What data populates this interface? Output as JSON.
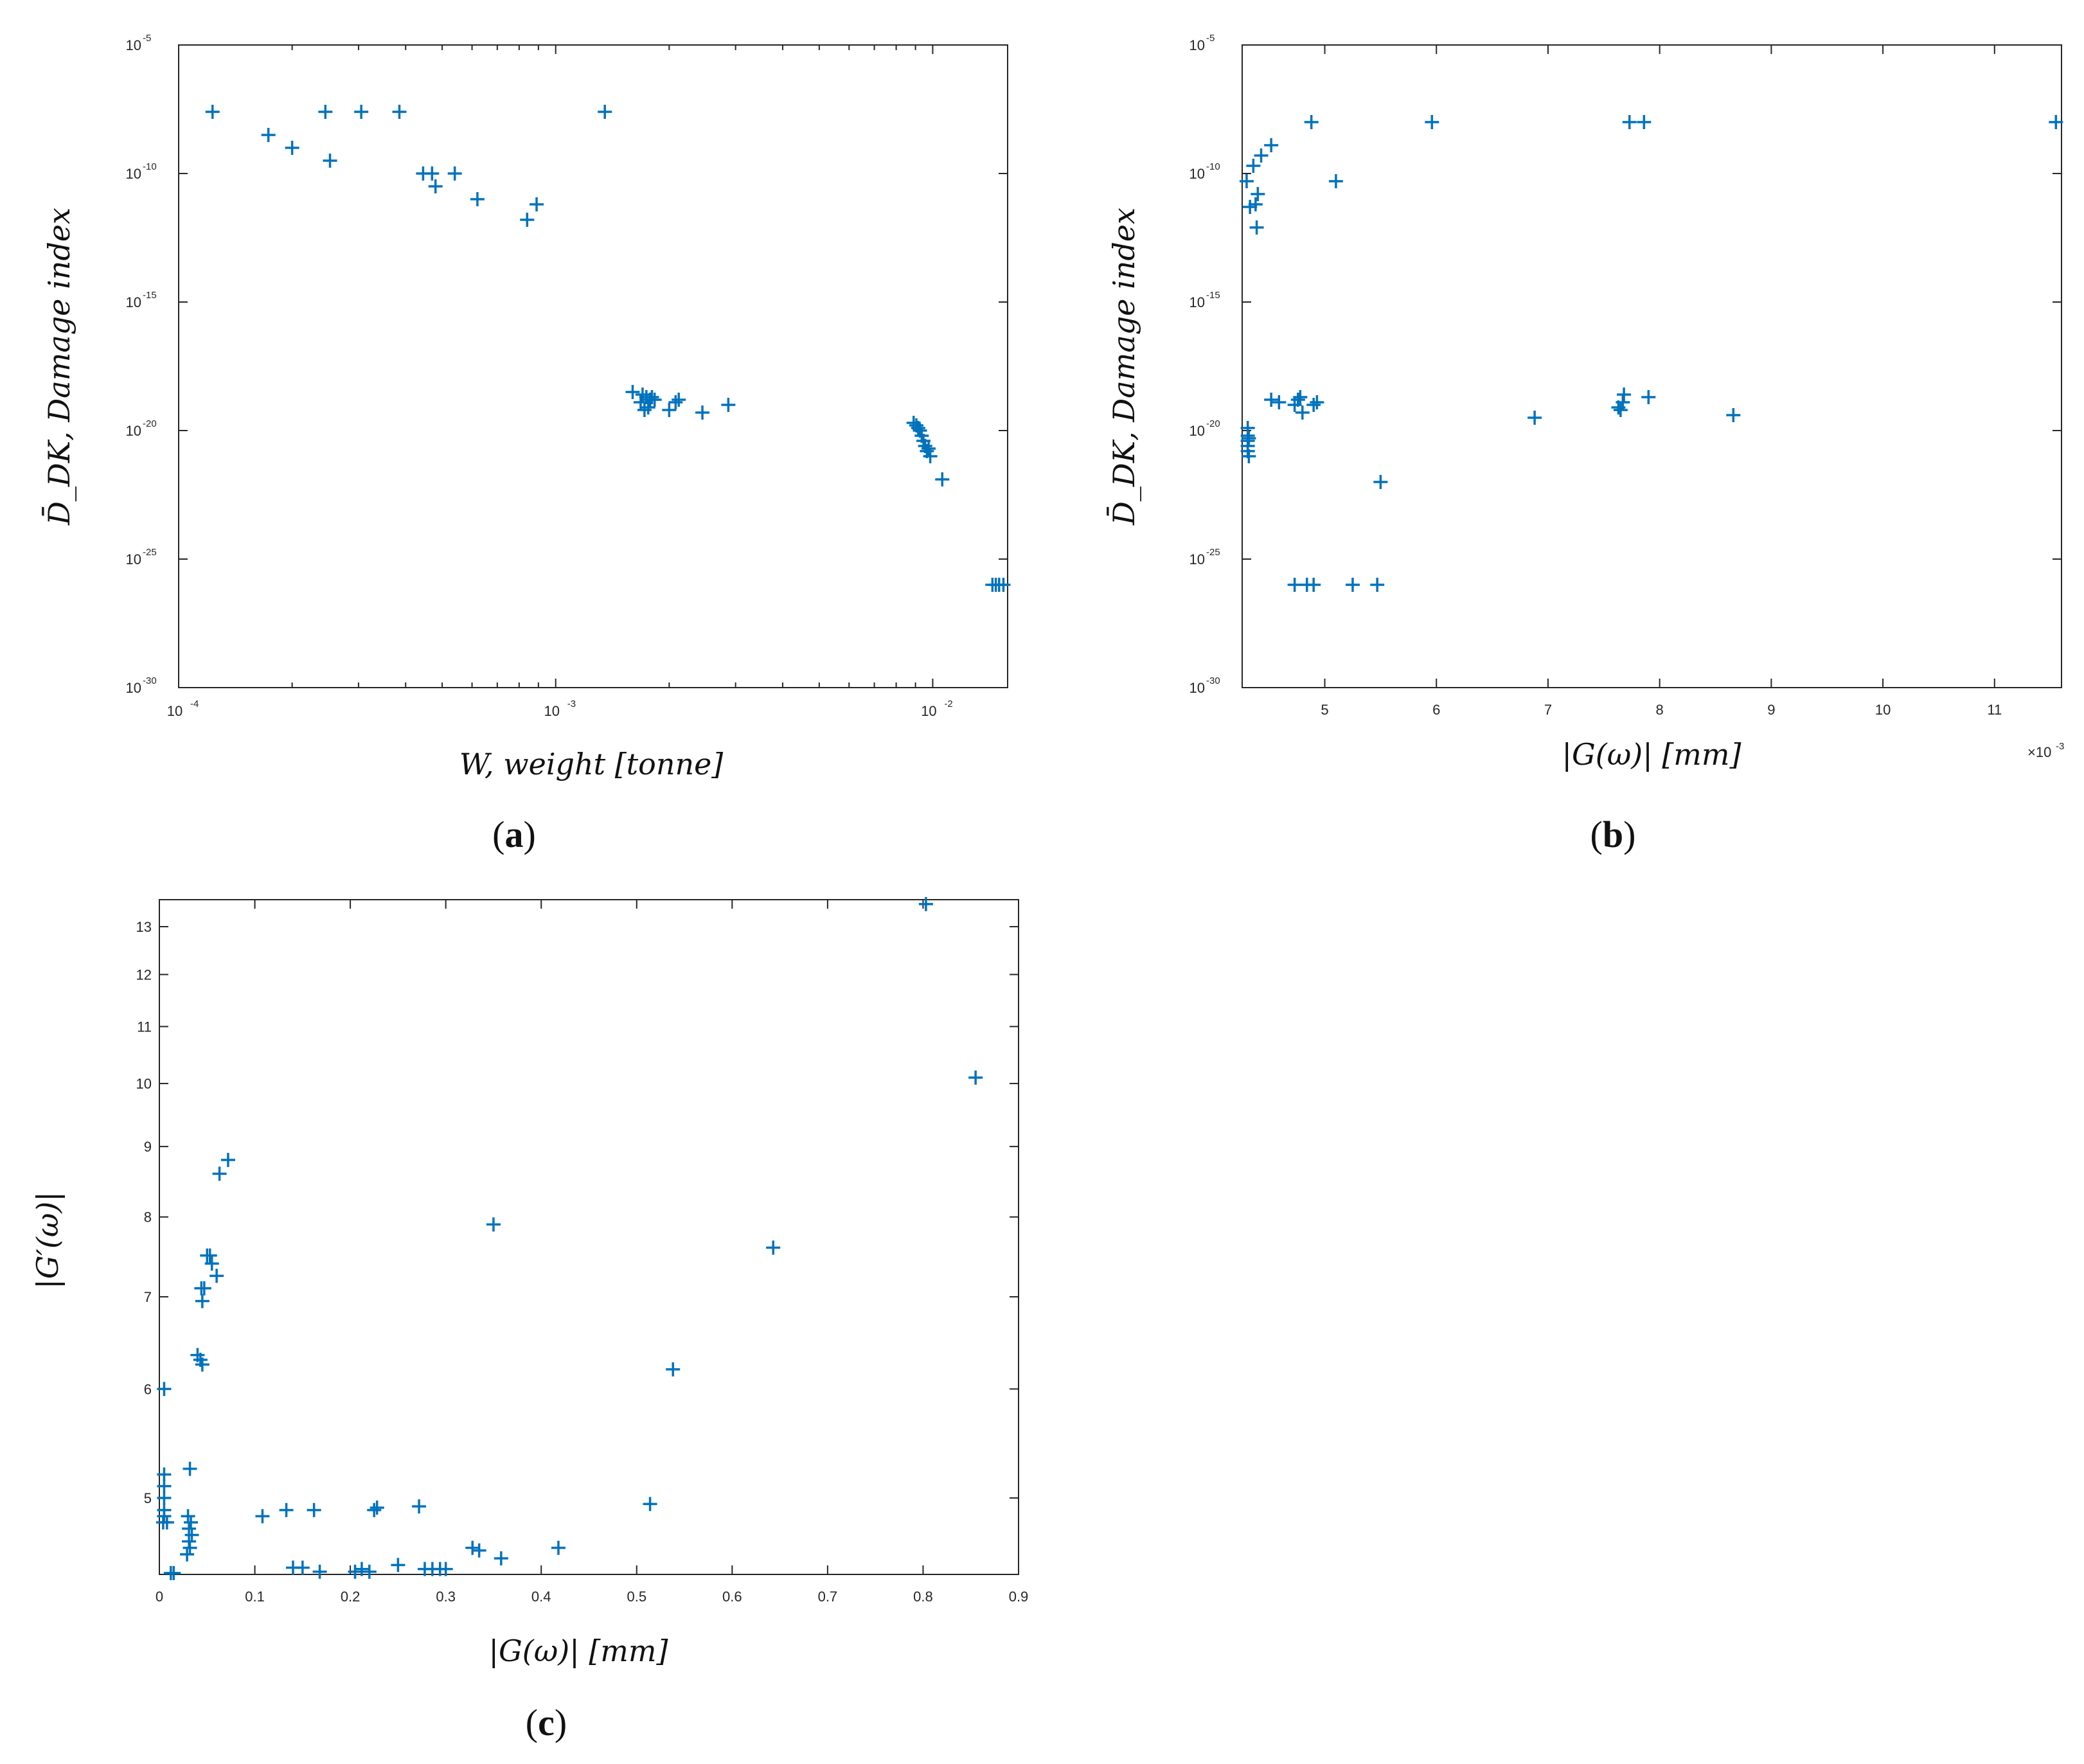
{
  "colors": {
    "marker": "#0072BD",
    "axis": "#262626",
    "background": "#ffffff"
  },
  "chart_data": [
    {
      "id": "a",
      "panel_label": {
        "open": "(",
        "letter": "a",
        "close": ")"
      },
      "type": "scatter",
      "marker": "plus",
      "xscale": "log",
      "yscale": "log",
      "xlim": [
        0.0001,
        0.0158
      ],
      "ylim": [
        -30,
        -5
      ],
      "y_is_log10": true,
      "xlabel": "W, weight  [tonne]",
      "ylabel": "D̄_DK, Damage index",
      "x_ticks": [
        {
          "value": 0.0001,
          "base": "10",
          "exp": "-4"
        },
        {
          "value": 0.001,
          "base": "10",
          "exp": "-3"
        },
        {
          "value": 0.01,
          "base": "10",
          "exp": "-2"
        }
      ],
      "y_ticks": [
        {
          "value": -5,
          "base": "10",
          "exp": "-5"
        },
        {
          "value": -10,
          "base": "10",
          "exp": "-10"
        },
        {
          "value": -15,
          "base": "10",
          "exp": "-15"
        },
        {
          "value": -20,
          "base": "10",
          "exp": "-20"
        },
        {
          "value": -25,
          "base": "10",
          "exp": "-25"
        },
        {
          "value": -30,
          "base": "10",
          "exp": "-30"
        }
      ],
      "points": [
        [
          0.000123,
          -7.6
        ],
        [
          0.000173,
          -8.5
        ],
        [
          0.0002,
          -9.0
        ],
        [
          0.000245,
          -7.6
        ],
        [
          0.000252,
          -9.5
        ],
        [
          0.000305,
          -7.6
        ],
        [
          0.000385,
          -7.6
        ],
        [
          0.000445,
          -10.0
        ],
        [
          0.00047,
          -10.0
        ],
        [
          0.00048,
          -10.5
        ],
        [
          0.00054,
          -10.0
        ],
        [
          0.00062,
          -11.0
        ],
        [
          0.00084,
          -11.8
        ],
        [
          0.00089,
          -11.2
        ],
        [
          0.00135,
          -7.6
        ],
        [
          0.0016,
          -18.5
        ],
        [
          0.00168,
          -18.9
        ],
        [
          0.00172,
          -19.2
        ],
        [
          0.00174,
          -18.7
        ],
        [
          0.00176,
          -19.1
        ],
        [
          0.00178,
          -18.8
        ],
        [
          0.0018,
          -18.7
        ],
        [
          0.00183,
          -18.8
        ],
        [
          0.0017,
          -18.6
        ],
        [
          0.002,
          -19.2
        ],
        [
          0.00208,
          -18.9
        ],
        [
          0.00212,
          -18.8
        ],
        [
          0.00245,
          -19.3
        ],
        [
          0.00287,
          -19.0
        ],
        [
          0.0089,
          -19.7
        ],
        [
          0.00905,
          -19.8
        ],
        [
          0.00915,
          -19.9
        ],
        [
          0.00925,
          -20.0
        ],
        [
          0.00935,
          -20.2
        ],
        [
          0.00945,
          -20.4
        ],
        [
          0.00955,
          -20.6
        ],
        [
          0.00965,
          -20.8
        ],
        [
          0.00975,
          -20.7
        ],
        [
          0.00985,
          -21.0
        ],
        [
          0.0106,
          -21.9
        ],
        [
          0.0144,
          -26.0
        ],
        [
          0.0147,
          -26.0
        ],
        [
          0.015,
          -26.0
        ],
        [
          0.0154,
          -26.0
        ]
      ]
    },
    {
      "id": "b",
      "panel_label": {
        "open": "(",
        "letter": "b",
        "close": ")"
      },
      "type": "scatter",
      "marker": "plus",
      "xscale": "linear",
      "yscale": "log",
      "xlim": [
        4.26,
        11.6
      ],
      "ylim": [
        -30,
        -5
      ],
      "y_is_log10": true,
      "x_multiplier": {
        "prefix": "×10",
        "exp": "-3"
      },
      "xlabel": "|G(ω)|  [mm]",
      "ylabel": "D̄_DK, Damage index",
      "x_ticks": [
        {
          "value": 5,
          "text": "5"
        },
        {
          "value": 6,
          "text": "6"
        },
        {
          "value": 7,
          "text": "7"
        },
        {
          "value": 8,
          "text": "8"
        },
        {
          "value": 9,
          "text": "9"
        },
        {
          "value": 10,
          "text": "10"
        },
        {
          "value": 11,
          "text": "11"
        }
      ],
      "y_ticks": [
        {
          "value": -5,
          "base": "10",
          "exp": "-5"
        },
        {
          "value": -10,
          "base": "10",
          "exp": "-10"
        },
        {
          "value": -15,
          "base": "10",
          "exp": "-15"
        },
        {
          "value": -20,
          "base": "10",
          "exp": "-20"
        },
        {
          "value": -25,
          "base": "10",
          "exp": "-25"
        },
        {
          "value": -30,
          "base": "10",
          "exp": "-30"
        }
      ],
      "points": [
        [
          4.3,
          -10.3
        ],
        [
          4.33,
          -11.3
        ],
        [
          4.36,
          -9.7
        ],
        [
          4.38,
          -11.2
        ],
        [
          4.39,
          -12.1
        ],
        [
          4.4,
          -10.8
        ],
        [
          4.43,
          -9.3
        ],
        [
          4.52,
          -8.9
        ],
        [
          4.88,
          -8.0
        ],
        [
          5.1,
          -10.3
        ],
        [
          5.96,
          -8.0
        ],
        [
          7.73,
          -8.0
        ],
        [
          7.86,
          -8.0
        ],
        [
          11.55,
          -8.0
        ],
        [
          4.31,
          -19.9
        ],
        [
          4.31,
          -20.2
        ],
        [
          4.31,
          -20.4
        ],
        [
          4.31,
          -20.6
        ],
        [
          4.31,
          -20.8
        ],
        [
          4.32,
          -21.0
        ],
        [
          4.32,
          -20.3
        ],
        [
          4.52,
          -18.8
        ],
        [
          4.59,
          -18.9
        ],
        [
          4.73,
          -19.0
        ],
        [
          4.76,
          -18.8
        ],
        [
          4.78,
          -18.7
        ],
        [
          4.8,
          -19.3
        ],
        [
          4.9,
          -19.0
        ],
        [
          4.93,
          -18.9
        ],
        [
          5.5,
          -22.0
        ],
        [
          6.88,
          -19.5
        ],
        [
          7.63,
          -19.1
        ],
        [
          7.65,
          -19.2
        ],
        [
          7.67,
          -18.9
        ],
        [
          7.68,
          -18.6
        ],
        [
          7.9,
          -18.7
        ],
        [
          8.66,
          -19.4
        ],
        [
          4.73,
          -26.0
        ],
        [
          4.84,
          -26.0
        ],
        [
          4.9,
          -26.0
        ],
        [
          5.25,
          -26.0
        ],
        [
          5.47,
          -26.0
        ]
      ]
    },
    {
      "id": "c",
      "panel_label": {
        "open": "(",
        "letter": "c",
        "close": ")"
      },
      "type": "scatter",
      "marker": "plus",
      "xscale": "linear",
      "yscale": "log",
      "xlim": [
        0,
        0.9
      ],
      "ylim": [
        4.4,
        13.6
      ],
      "xlabel": "|G(ω)|  [mm]",
      "ylabel": "|G′(ω)|",
      "x_ticks": [
        {
          "value": 0,
          "text": "0"
        },
        {
          "value": 0.1,
          "text": "0.1"
        },
        {
          "value": 0.2,
          "text": "0.2"
        },
        {
          "value": 0.3,
          "text": "0.3"
        },
        {
          "value": 0.4,
          "text": "0.4"
        },
        {
          "value": 0.5,
          "text": "0.5"
        },
        {
          "value": 0.6,
          "text": "0.6"
        },
        {
          "value": 0.7,
          "text": "0.7"
        },
        {
          "value": 0.8,
          "text": "0.8"
        },
        {
          "value": 0.9,
          "text": "0.9"
        }
      ],
      "y_ticks": [
        {
          "value": 5,
          "text": "5"
        },
        {
          "value": 6,
          "text": "6"
        },
        {
          "value": 7,
          "text": "7"
        },
        {
          "value": 8,
          "text": "8"
        },
        {
          "value": 9,
          "text": "9"
        },
        {
          "value": 10,
          "text": "10"
        },
        {
          "value": 11,
          "text": "11"
        },
        {
          "value": 12,
          "text": "12"
        },
        {
          "value": 13,
          "text": "13"
        }
      ],
      "points": [
        [
          0.005,
          6.0
        ],
        [
          0.005,
          5.2
        ],
        [
          0.005,
          5.1
        ],
        [
          0.005,
          5.0
        ],
        [
          0.005,
          4.9
        ],
        [
          0.005,
          4.85
        ],
        [
          0.004,
          4.8
        ],
        [
          0.008,
          4.8
        ],
        [
          0.012,
          4.41
        ],
        [
          0.015,
          4.41
        ],
        [
          0.032,
          5.25
        ],
        [
          0.03,
          4.85
        ],
        [
          0.033,
          4.8
        ],
        [
          0.031,
          4.75
        ],
        [
          0.034,
          4.7
        ],
        [
          0.031,
          4.65
        ],
        [
          0.032,
          4.6
        ],
        [
          0.029,
          4.55
        ],
        [
          0.04,
          6.35
        ],
        [
          0.043,
          6.3
        ],
        [
          0.045,
          6.25
        ],
        [
          0.044,
          7.1
        ],
        [
          0.047,
          7.1
        ],
        [
          0.045,
          6.95
        ],
        [
          0.05,
          7.5
        ],
        [
          0.053,
          7.5
        ],
        [
          0.055,
          7.4
        ],
        [
          0.06,
          7.25
        ],
        [
          0.063,
          8.6
        ],
        [
          0.072,
          8.8
        ],
        [
          0.108,
          4.85
        ],
        [
          0.133,
          4.9
        ],
        [
          0.162,
          4.9
        ],
        [
          0.14,
          4.45
        ],
        [
          0.15,
          4.45
        ],
        [
          0.168,
          4.42
        ],
        [
          0.205,
          4.42
        ],
        [
          0.212,
          4.44
        ],
        [
          0.22,
          4.42
        ],
        [
          0.225,
          4.9
        ],
        [
          0.228,
          4.92
        ],
        [
          0.25,
          4.47
        ],
        [
          0.272,
          4.93
        ],
        [
          0.278,
          4.44
        ],
        [
          0.286,
          4.44
        ],
        [
          0.294,
          4.44
        ],
        [
          0.3,
          4.44
        ],
        [
          0.328,
          4.6
        ],
        [
          0.335,
          4.58
        ],
        [
          0.358,
          4.52
        ],
        [
          0.35,
          7.9
        ],
        [
          0.418,
          4.6
        ],
        [
          0.514,
          4.95
        ],
        [
          0.538,
          6.2
        ],
        [
          0.643,
          7.6
        ],
        [
          0.803,
          13.5
        ],
        [
          0.855,
          10.1
        ]
      ]
    }
  ]
}
